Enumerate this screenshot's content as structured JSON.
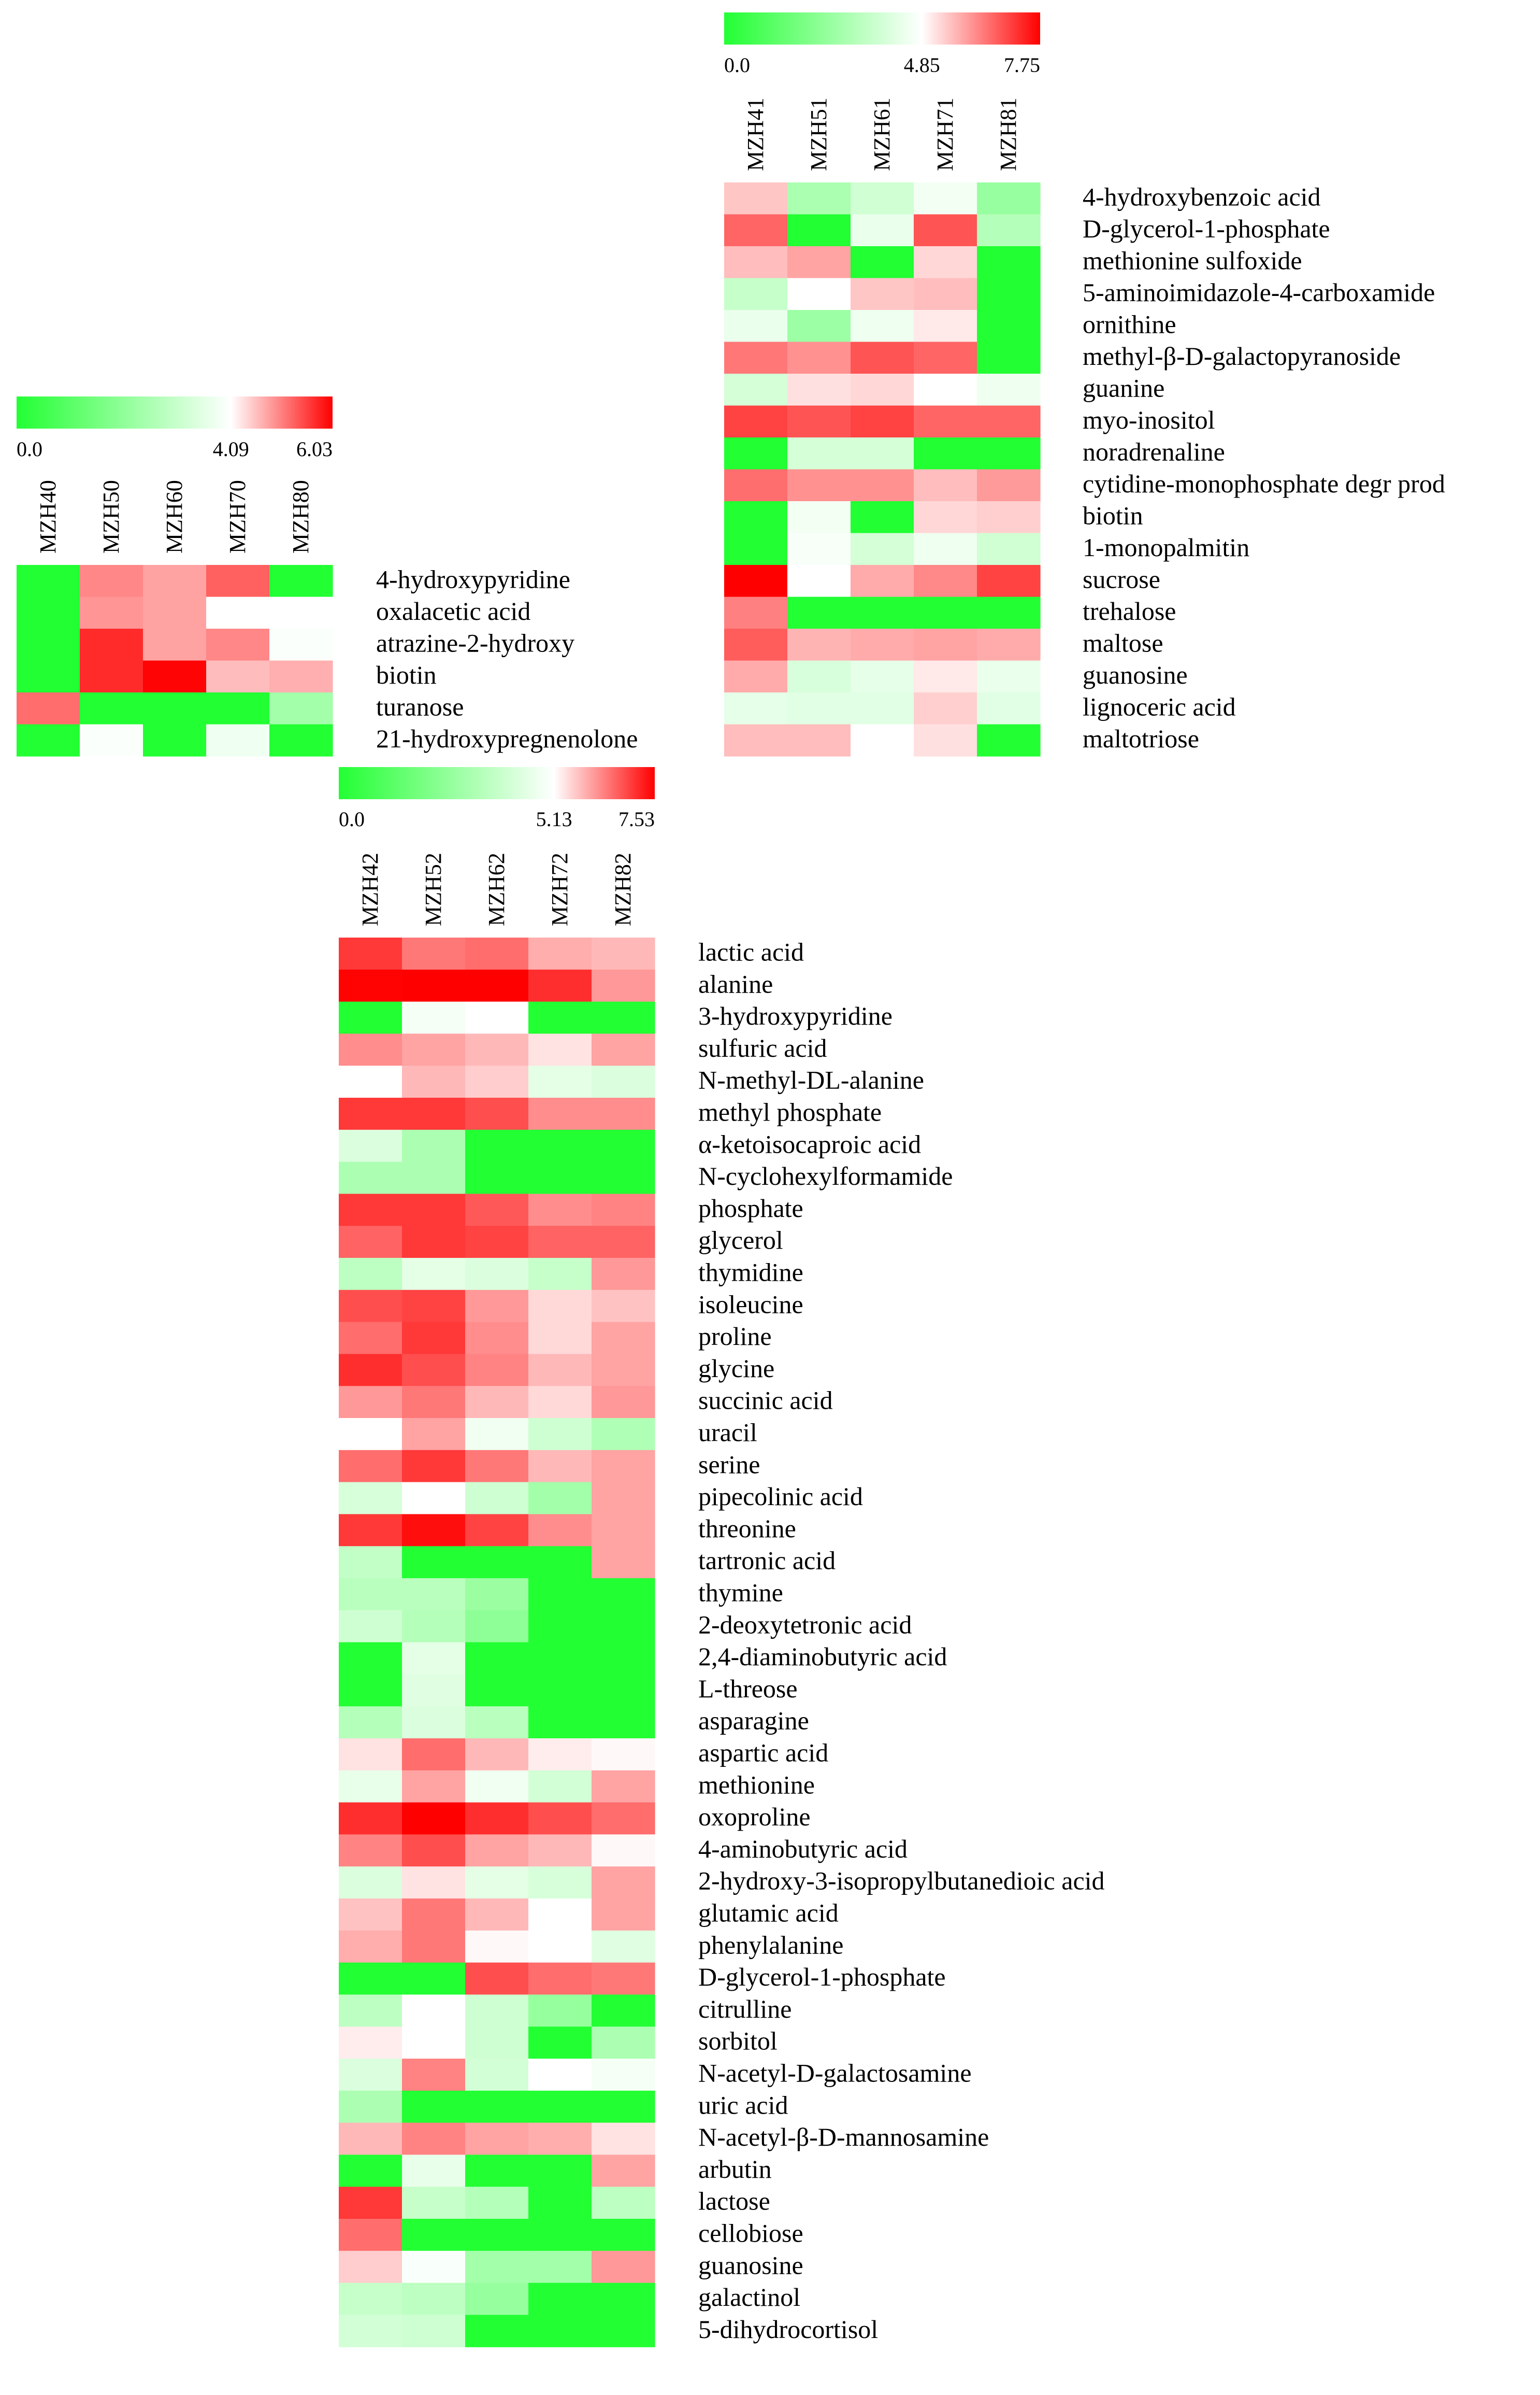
{
  "chart_data": [
    {
      "type": "heatmap",
      "columns": [
        "MZH40",
        "MZH50",
        "MZH60",
        "MZH70",
        "MZH80"
      ],
      "color_scale": {
        "min": 0.0,
        "mid": 4.09,
        "max": 6.03,
        "low_color": "#22ff33",
        "mid_color": "#ffffff",
        "high_color": "#ff0000",
        "tick_labels": [
          "0.0",
          "4.09",
          "6.03"
        ]
      },
      "rows": [
        {
          "label": "4-hydroxypyridine",
          "values": [
            0.0,
            5.0,
            4.8,
            5.3,
            0.0
          ]
        },
        {
          "label": "oxalacetic acid",
          "values": [
            0.0,
            4.9,
            4.8,
            4.09,
            4.09
          ]
        },
        {
          "label": "atrazine-2-hydroxy",
          "values": [
            0.0,
            5.7,
            4.8,
            5.0,
            4.0
          ]
        },
        {
          "label": "biotin",
          "values": [
            0.0,
            5.7,
            6.0,
            4.6,
            4.7
          ]
        },
        {
          "label": "turanose",
          "values": [
            5.2,
            0.0,
            0.0,
            0.0,
            2.4
          ]
        },
        {
          "label": "21-hydroxypregnenolone",
          "values": [
            0.0,
            4.0,
            0.0,
            3.8,
            0.0
          ]
        }
      ]
    },
    {
      "type": "heatmap",
      "columns": [
        "MZH41",
        "MZH51",
        "MZH61",
        "MZH71",
        "MZH81"
      ],
      "color_scale": {
        "min": 0.0,
        "mid": 4.85,
        "max": 7.75,
        "low_color": "#22ff33",
        "mid_color": "#ffffff",
        "high_color": "#ff0000",
        "tick_labels": [
          "0.0",
          "4.85",
          "7.75"
        ]
      },
      "rows": [
        {
          "label": "4-hydroxybenzoic acid",
          "values": [
            5.5,
            3.0,
            3.8,
            4.6,
            2.6
          ]
        },
        {
          "label": "D-glycerol-1-phosphate",
          "values": [
            6.6,
            0.0,
            4.4,
            6.8,
            3.2
          ]
        },
        {
          "label": "methionine sulfoxide",
          "values": [
            5.6,
            5.9,
            0.0,
            5.3,
            0.0
          ]
        },
        {
          "label": "5-aminoimidazole-4-carboxamide",
          "values": [
            3.6,
            4.85,
            5.5,
            5.6,
            0.0
          ]
        },
        {
          "label": "ornithine",
          "values": [
            4.4,
            2.7,
            4.5,
            5.1,
            0.0
          ]
        },
        {
          "label": "methyl-β-D-galactopyranoside",
          "values": [
            6.4,
            6.1,
            6.8,
            6.6,
            0.0
          ]
        },
        {
          "label": "guanine",
          "values": [
            3.9,
            5.2,
            5.3,
            4.85,
            4.5
          ]
        },
        {
          "label": "myo-inositol",
          "values": [
            7.0,
            6.8,
            7.0,
            6.6,
            6.6
          ]
        },
        {
          "label": "noradrenaline",
          "values": [
            0.0,
            3.9,
            3.9,
            0.0,
            0.0
          ]
        },
        {
          "label": "cytidine-monophosphate degr prod",
          "values": [
            6.5,
            6.1,
            6.1,
            5.6,
            6.0
          ]
        },
        {
          "label": "biotin",
          "values": [
            0.0,
            4.6,
            0.0,
            5.3,
            5.4
          ]
        },
        {
          "label": "1-monopalmitin",
          "values": [
            0.0,
            4.7,
            3.9,
            4.5,
            3.8
          ]
        },
        {
          "label": "sucrose",
          "values": [
            7.75,
            4.85,
            5.8,
            6.2,
            7.0
          ]
        },
        {
          "label": "trehalose",
          "values": [
            6.3,
            0.0,
            0.0,
            0.0,
            0.0
          ]
        },
        {
          "label": "maltose",
          "values": [
            6.7,
            5.7,
            5.8,
            5.9,
            5.8
          ]
        },
        {
          "label": "guanosine",
          "values": [
            5.8,
            4.0,
            4.3,
            5.1,
            4.4
          ]
        },
        {
          "label": "lignoceric acid",
          "values": [
            4.3,
            4.2,
            4.2,
            5.4,
            4.2
          ]
        },
        {
          "label": "maltotriose",
          "values": [
            5.6,
            5.6,
            4.85,
            5.2,
            0.0
          ]
        }
      ]
    },
    {
      "type": "heatmap",
      "columns": [
        "MZH42",
        "MZH52",
        "MZH62",
        "MZH72",
        "MZH82"
      ],
      "color_scale": {
        "min": 0.0,
        "mid": 5.13,
        "max": 7.53,
        "low_color": "#22ff33",
        "mid_color": "#ffffff",
        "high_color": "#ff0000",
        "tick_labels": [
          "0.0",
          "5.13",
          "7.53"
        ]
      },
      "rows": [
        {
          "label": "lactic acid",
          "values": [
            7.0,
            6.4,
            6.5,
            5.9,
            5.8
          ]
        },
        {
          "label": "alanine",
          "values": [
            7.5,
            7.53,
            7.53,
            7.1,
            6.1
          ]
        },
        {
          "label": "3-hydroxypyridine",
          "values": [
            0.0,
            4.9,
            5.13,
            0.0,
            0.0
          ]
        },
        {
          "label": "sulfuric acid",
          "values": [
            6.2,
            6.0,
            5.8,
            5.4,
            6.0
          ]
        },
        {
          "label": "N-methyl-DL-alanine",
          "values": [
            5.13,
            5.8,
            5.6,
            4.5,
            4.3
          ]
        },
        {
          "label": "methyl phosphate",
          "values": [
            7.0,
            7.0,
            6.8,
            6.2,
            6.2
          ]
        },
        {
          "label": "α-ketoisocaproic acid",
          "values": [
            4.3,
            3.2,
            0.0,
            0.0,
            0.0
          ]
        },
        {
          "label": "N-cyclohexylformamide",
          "values": [
            3.2,
            3.2,
            0.0,
            0.0,
            0.0
          ]
        },
        {
          "label": "phosphate",
          "values": [
            7.0,
            7.0,
            6.7,
            6.2,
            6.3
          ]
        },
        {
          "label": "glycerol",
          "values": [
            6.6,
            7.0,
            6.9,
            6.6,
            6.6
          ]
        },
        {
          "label": "thymidine",
          "values": [
            3.6,
            4.5,
            4.3,
            3.8,
            6.1
          ]
        },
        {
          "label": "isoleucine",
          "values": [
            6.8,
            6.9,
            6.1,
            5.5,
            5.7
          ]
        },
        {
          "label": "proline",
          "values": [
            6.5,
            7.0,
            6.2,
            5.5,
            6.0
          ]
        },
        {
          "label": "glycine",
          "values": [
            7.1,
            6.8,
            6.3,
            5.8,
            6.0
          ]
        },
        {
          "label": "succinic acid",
          "values": [
            6.1,
            6.4,
            5.8,
            5.5,
            6.1
          ]
        },
        {
          "label": "uracil",
          "values": [
            5.13,
            6.0,
            4.8,
            4.0,
            3.3
          ]
        },
        {
          "label": "serine",
          "values": [
            6.5,
            7.0,
            6.4,
            5.8,
            6.0
          ]
        },
        {
          "label": "pipecolinic acid",
          "values": [
            4.2,
            5.13,
            4.0,
            3.0,
            6.0
          ]
        },
        {
          "label": "threonine",
          "values": [
            7.0,
            7.4,
            6.9,
            6.2,
            6.0
          ]
        },
        {
          "label": "tartronic acid",
          "values": [
            3.7,
            0.0,
            0.0,
            0.0,
            6.0
          ]
        },
        {
          "label": "thymine",
          "values": [
            3.5,
            3.5,
            2.8,
            0.0,
            0.0
          ]
        },
        {
          "label": "2-deoxytetronic acid",
          "values": [
            4.0,
            3.4,
            2.5,
            0.0,
            0.0
          ]
        },
        {
          "label": "2,4-diaminobutyric acid",
          "values": [
            0.0,
            4.5,
            0.0,
            0.0,
            0.0
          ]
        },
        {
          "label": "L-threose",
          "values": [
            0.0,
            4.4,
            0.0,
            0.0,
            0.0
          ]
        },
        {
          "label": "asparagine",
          "values": [
            3.4,
            4.3,
            3.5,
            0.0,
            0.0
          ]
        },
        {
          "label": "aspartic acid",
          "values": [
            5.4,
            6.5,
            5.8,
            5.3,
            5.2
          ]
        },
        {
          "label": "methionine",
          "values": [
            4.6,
            6.0,
            4.8,
            4.1,
            6.0
          ]
        },
        {
          "label": "oxoproline",
          "values": [
            7.1,
            7.53,
            7.1,
            6.8,
            6.5
          ]
        },
        {
          "label": "4-aminobutyric acid",
          "values": [
            6.3,
            6.8,
            6.0,
            5.8,
            5.2
          ]
        },
        {
          "label": "2-hydroxy-3-isopropylbutanedioic acid",
          "values": [
            4.3,
            5.4,
            4.5,
            4.2,
            6.0
          ]
        },
        {
          "label": "glutamic acid",
          "values": [
            5.7,
            6.4,
            5.8,
            5.13,
            6.0
          ]
        },
        {
          "label": "phenylalanine",
          "values": [
            5.9,
            6.4,
            5.2,
            5.13,
            4.4
          ]
        },
        {
          "label": "D-glycerol-1-phosphate",
          "values": [
            0.0,
            0.0,
            6.8,
            6.5,
            6.4
          ]
        },
        {
          "label": "citrulline",
          "values": [
            3.6,
            5.13,
            4.0,
            2.7,
            0.0
          ]
        },
        {
          "label": "sorbitol",
          "values": [
            5.3,
            5.13,
            4.0,
            0.0,
            3.2
          ]
        },
        {
          "label": "N-acetyl-D-galactosamine",
          "values": [
            4.3,
            6.3,
            4.1,
            5.13,
            4.9
          ]
        },
        {
          "label": "uric acid",
          "values": [
            3.2,
            0.0,
            0.0,
            0.0,
            0.0
          ]
        },
        {
          "label": "N-acetyl-β-D-mannosamine",
          "values": [
            5.8,
            6.3,
            6.0,
            5.9,
            5.4
          ]
        },
        {
          "label": "arbutin",
          "values": [
            0.0,
            4.6,
            0.0,
            0.0,
            6.0
          ]
        },
        {
          "label": "lactose",
          "values": [
            7.0,
            3.8,
            3.4,
            0.0,
            3.6
          ]
        },
        {
          "label": "cellobiose",
          "values": [
            6.5,
            0.0,
            0.0,
            0.0,
            0.0
          ]
        },
        {
          "label": "guanosine",
          "values": [
            5.6,
            5.0,
            3.0,
            3.0,
            6.1
          ]
        },
        {
          "label": "galactinol",
          "values": [
            3.8,
            3.6,
            2.7,
            0.0,
            0.0
          ]
        },
        {
          "label": "5-dihydrocortisol",
          "values": [
            4.1,
            4.0,
            0.0,
            0.0,
            0.0
          ]
        }
      ]
    }
  ]
}
